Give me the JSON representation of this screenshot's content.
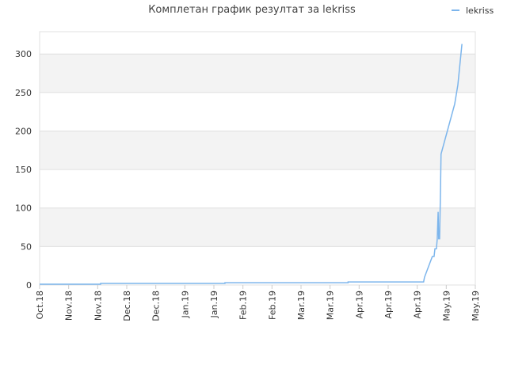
{
  "chart_data": {
    "type": "line",
    "title": "Комплетан график резултат за lekriss",
    "x": [
      0,
      2.1,
      2.1,
      6.38,
      6.38,
      10.62,
      10.62,
      13.22,
      13.25,
      13.52,
      13.58,
      13.61,
      13.66,
      13.69,
      13.72,
      13.74,
      13.77,
      13.8,
      13.82,
      14.29,
      14.4,
      14.54
    ],
    "series": [
      {
        "name": "lekriss",
        "color": "#7cb5ec",
        "values": [
          1,
          1,
          2,
          2,
          3,
          3,
          4,
          4,
          10,
          37,
          37,
          47,
          47,
          60,
          95,
          60,
          60,
          120,
          170,
          235,
          260,
          313
        ]
      }
    ],
    "xlim": [
      0,
      15
    ],
    "xticks": [
      {
        "value": 0,
        "label": "Oct.18"
      },
      {
        "value": 1,
        "label": "Nov.18"
      },
      {
        "value": 2,
        "label": "Nov.18"
      },
      {
        "value": 3,
        "label": "Dec.18"
      },
      {
        "value": 4,
        "label": "Dec.18"
      },
      {
        "value": 5,
        "label": "Jan.19"
      },
      {
        "value": 6,
        "label": "Jan.19"
      },
      {
        "value": 7,
        "label": "Feb.19"
      },
      {
        "value": 8,
        "label": "Feb.19"
      },
      {
        "value": 9,
        "label": "Mar.19"
      },
      {
        "value": 10,
        "label": "Mar.19"
      },
      {
        "value": 11,
        "label": "Apr.19"
      },
      {
        "value": 12,
        "label": "Apr.19"
      },
      {
        "value": 13,
        "label": "Apr.19"
      },
      {
        "value": 14,
        "label": "May.19"
      },
      {
        "value": 15,
        "label": "May.19"
      }
    ],
    "ylim": [
      0,
      329
    ],
    "yticks": [
      0,
      50,
      100,
      150,
      200,
      250,
      300
    ],
    "grid": true,
    "legend": "top-right"
  }
}
